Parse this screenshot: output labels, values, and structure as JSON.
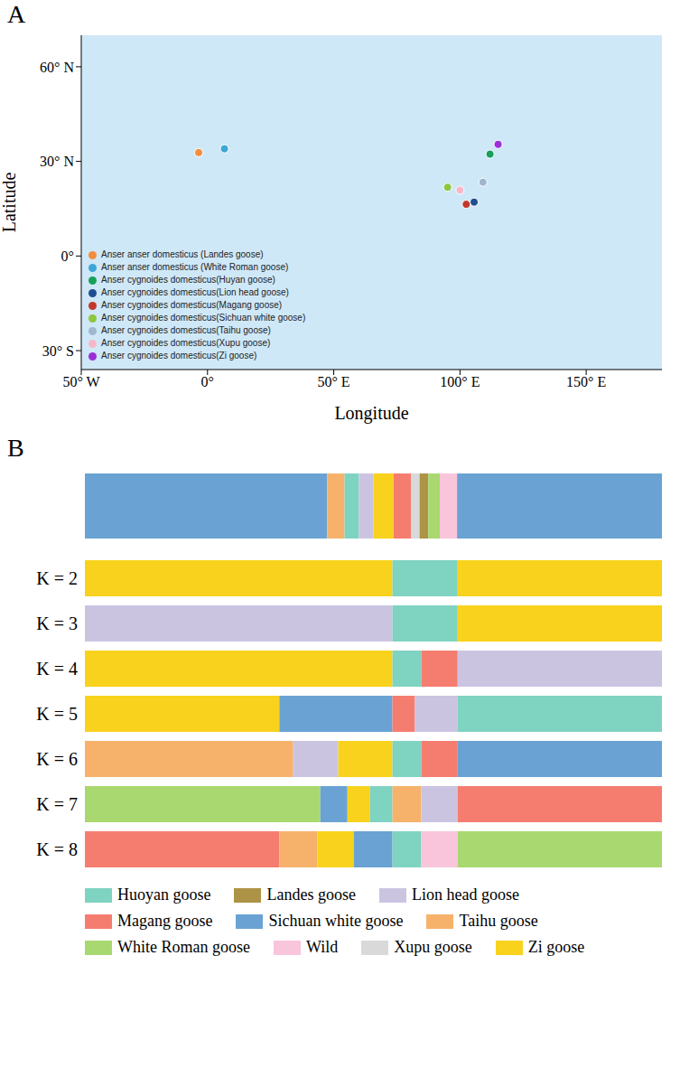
{
  "chart_data": [
    {
      "panel": "A",
      "type": "scatter",
      "xlabel": "Longitude",
      "ylabel": "Latitude",
      "xlim": [
        -50,
        180
      ],
      "ylim": [
        -36,
        70
      ],
      "xticks": [
        {
          "value": -50,
          "label": "50° W"
        },
        {
          "value": 0,
          "label": "0°"
        },
        {
          "value": 50,
          "label": "50° E"
        },
        {
          "value": 100,
          "label": "100° E"
        },
        {
          "value": 150,
          "label": "150° E"
        }
      ],
      "yticks": [
        {
          "value": -30,
          "label": "30° S"
        },
        {
          "value": 0,
          "label": "0°"
        },
        {
          "value": 30,
          "label": "30° N"
        },
        {
          "value": 60,
          "label": "60° N"
        }
      ],
      "grid": false,
      "legend": "lower left",
      "marker": "circle",
      "series": [
        {
          "name": "Anser anser domesticus (Landes goose)",
          "color": "#f28e3f",
          "x": [
            -3.5
          ],
          "values": [
            32.8
          ]
        },
        {
          "name": "Anser anser domesticus (White Roman goose)",
          "color": "#3ea6d6",
          "x": [
            6.7
          ],
          "values": [
            34.0
          ]
        },
        {
          "name": "Anser cygnoides domesticus(Huyan goose)",
          "color": "#19a05a",
          "x": [
            111.9
          ],
          "values": [
            32.3
          ]
        },
        {
          "name": "Anser cygnoides domesticus(Lion head goose)",
          "color": "#1e4f8f",
          "x": [
            105.6
          ],
          "values": [
            17.1
          ]
        },
        {
          "name": "Anser cygnoides domesticus(Magang goose)",
          "color": "#c1392b",
          "x": [
            102.5
          ],
          "values": [
            16.4
          ]
        },
        {
          "name": "Anser cygnoides domesticus(Sichuan white goose)",
          "color": "#8dc63f",
          "x": [
            95.1
          ],
          "values": [
            21.8
          ]
        },
        {
          "name": "Anser cygnoides domesticus(Taihu goose)",
          "color": "#9fb6cf",
          "x": [
            109.1
          ],
          "values": [
            23.4
          ]
        },
        {
          "name": "Anser cygnoides domesticus(Xupu goose)",
          "color": "#f6b8c9",
          "x": [
            100.0
          ],
          "values": [
            20.9
          ]
        },
        {
          "name": "Anser cygnoides domesticus(Zi goose)",
          "color": "#9a2fd6",
          "x": [
            115.1
          ],
          "values": [
            35.4
          ]
        }
      ]
    },
    {
      "panel": "B",
      "type": "bar",
      "orientation": "horizontal",
      "stacked": true,
      "tick_labels": false,
      "xlim": [
        0,
        100
      ],
      "legend": "bottom",
      "groups": [
        {
          "name": "Huoyan goose",
          "color": "#7fd3c1"
        },
        {
          "name": "Landes goose",
          "color": "#ad9345"
        },
        {
          "name": "Lion head goose",
          "color": "#cbc4e1"
        },
        {
          "name": "Magang goose",
          "color": "#f57d70"
        },
        {
          "name": "Sichuan white goose",
          "color": "#6aa3d3"
        },
        {
          "name": "Taihu goose",
          "color": "#f6b26b"
        },
        {
          "name": "White Roman goose",
          "color": "#a9d870"
        },
        {
          "name": "Wild",
          "color": "#f8c5da"
        },
        {
          "name": "Xupu goose",
          "color": "#d9d9d9"
        },
        {
          "name": "Zi goose",
          "color": "#f8d21c"
        }
      ],
      "blocks": [
        {
          "group": "Sichuan white goose",
          "value": 42.0
        },
        {
          "group": "Taihu goose",
          "value": 3.0
        },
        {
          "group": "Huoyan goose",
          "value": 2.5
        },
        {
          "group": "Lion head goose",
          "value": 2.5
        },
        {
          "group": "Zi goose",
          "value": 3.5
        },
        {
          "group": "Magang goose",
          "value": 3.0
        },
        {
          "group": "Xupu goose",
          "value": 1.5
        },
        {
          "group": "Landes goose",
          "value": 1.5
        },
        {
          "group": "White Roman goose",
          "value": 2.0
        },
        {
          "group": "Wild",
          "value": 3.0
        },
        {
          "group": "Sichuan white goose",
          "value": 35.5
        }
      ]
    },
    {
      "type": "bar",
      "orientation": "horizontal",
      "stacked": true,
      "tick_labels": "y",
      "xlim": [
        0,
        100
      ],
      "categories": [
        "K = 2",
        "K = 3",
        "K = 4",
        "K = 5",
        "K = 6",
        "K = 7",
        "K = 8"
      ],
      "blocks": [
        [
          {
            "color": "#f8d21c",
            "value": 53.3
          },
          {
            "color": "#7fd3c1",
            "value": 11.3
          },
          {
            "color": "#f8d21c",
            "value": 35.4
          }
        ],
        [
          {
            "color": "#cbc4e1",
            "value": 53.3
          },
          {
            "color": "#7fd3c1",
            "value": 11.3
          },
          {
            "color": "#f8d21c",
            "value": 35.4
          }
        ],
        [
          {
            "color": "#f8d21c",
            "value": 53.3
          },
          {
            "color": "#7fd3c1",
            "value": 5.0
          },
          {
            "color": "#f57d70",
            "value": 6.3
          },
          {
            "color": "#cbc4e1",
            "value": 35.4
          }
        ],
        [
          {
            "color": "#f8d21c",
            "value": 33.7
          },
          {
            "color": "#6aa3d3",
            "value": 19.6
          },
          {
            "color": "#f57d70",
            "value": 3.9
          },
          {
            "color": "#cbc4e1",
            "value": 7.4
          },
          {
            "color": "#7fd3c1",
            "value": 35.4
          }
        ],
        [
          {
            "color": "#f6b26b",
            "value": 36.1
          },
          {
            "color": "#cbc4e1",
            "value": 7.8
          },
          {
            "color": "#f8d21c",
            "value": 9.4
          },
          {
            "color": "#7fd3c1",
            "value": 5.0
          },
          {
            "color": "#f57d70",
            "value": 6.3
          },
          {
            "color": "#6aa3d3",
            "value": 35.4
          }
        ],
        [
          {
            "color": "#a9d870",
            "value": 40.8
          },
          {
            "color": "#6aa3d3",
            "value": 4.7
          },
          {
            "color": "#f8d21c",
            "value": 3.9
          },
          {
            "color": "#7fd3c1",
            "value": 3.9
          },
          {
            "color": "#f6b26b",
            "value": 5.0
          },
          {
            "color": "#cbc4e1",
            "value": 6.3
          },
          {
            "color": "#f57d70",
            "value": 35.4
          }
        ],
        [
          {
            "color": "#f57d70",
            "value": 33.7
          },
          {
            "color": "#f6b26b",
            "value": 6.6
          },
          {
            "color": "#f8d21c",
            "value": 6.3
          },
          {
            "color": "#6aa3d3",
            "value": 6.7
          },
          {
            "color": "#7fd3c1",
            "value": 5.0
          },
          {
            "color": "#f8c5da",
            "value": 6.3
          },
          {
            "color": "#a9d870",
            "value": 35.4
          }
        ]
      ]
    }
  ]
}
